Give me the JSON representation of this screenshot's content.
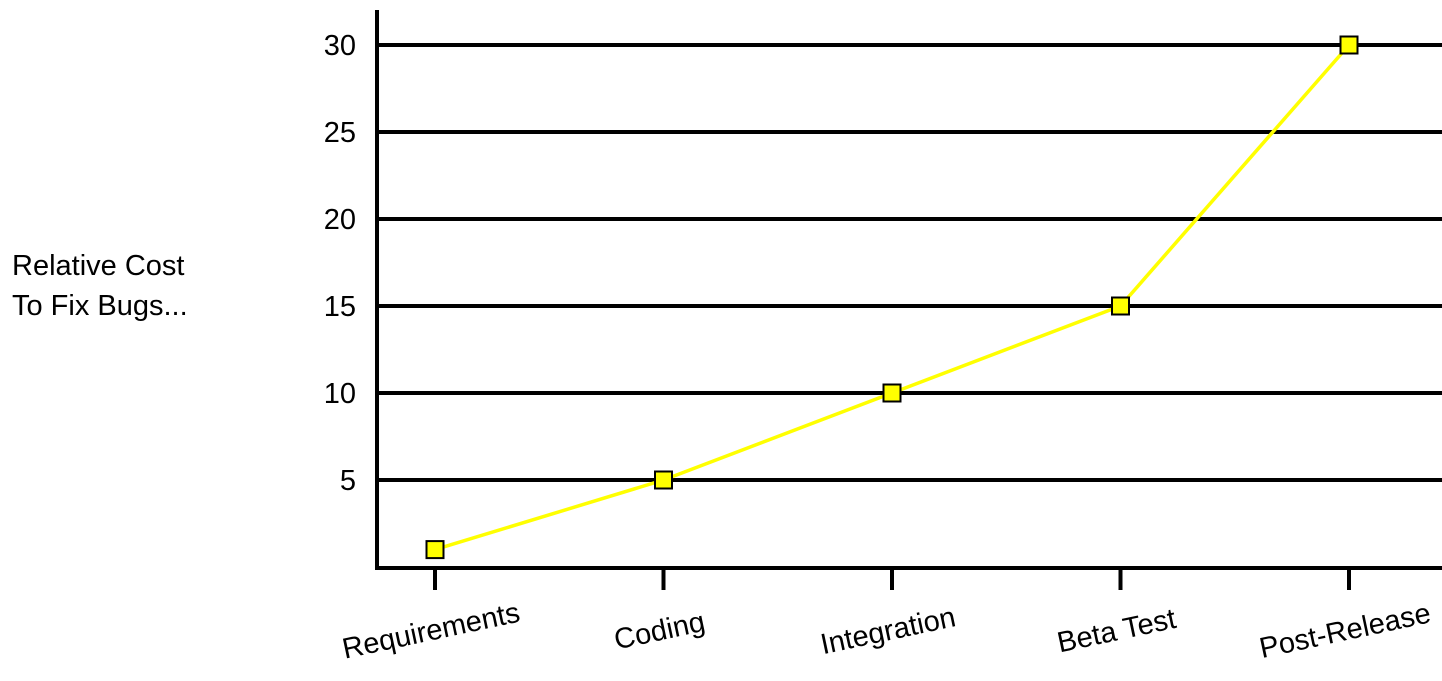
{
  "chart_data": {
    "type": "line",
    "title": "",
    "xlabel": "",
    "ylabel_lines": [
      "Relative Cost",
      "To Fix Bugs..."
    ],
    "categories": [
      "Requirements",
      "Coding",
      "Integration",
      "Beta Test",
      "Post-Release"
    ],
    "y_ticks": [
      5,
      10,
      15,
      20,
      25,
      30
    ],
    "ylim": [
      0,
      30
    ],
    "grid": true,
    "series": [
      {
        "values": [
          1,
          5,
          10,
          15,
          30
        ]
      }
    ],
    "colors": {
      "line": "#ffff00",
      "marker_fill": "#ffff00",
      "marker_stroke": "#000000",
      "grid": "#000000",
      "axis": "#000000"
    }
  }
}
